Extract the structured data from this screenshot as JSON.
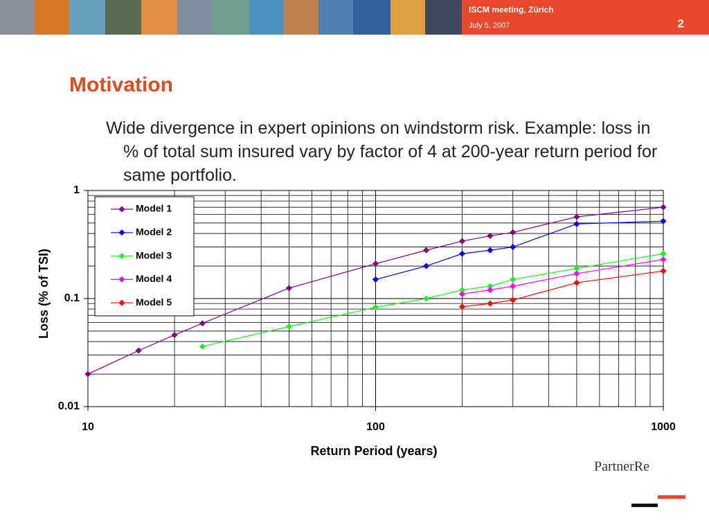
{
  "header": {
    "meeting": "ISCM meeting, Zürich",
    "date": "July 5, 2007",
    "page": "2"
  },
  "title": "Motivation",
  "bullet": "Wide divergence in expert opinions on windstorm risk. Example: loss in % of total sum insured vary by factor of 4 at 200-year return period for same portfolio.",
  "logo": "PartnerRe",
  "chart_data": {
    "type": "line",
    "x_label": "Return Period (years)",
    "y_label": "Loss (% of TSI)",
    "x": [
      10,
      15,
      20,
      25,
      50,
      100,
      150,
      200,
      250,
      300,
      500,
      1000
    ],
    "xlim": [
      10,
      1000
    ],
    "ylim": [
      0.01,
      1
    ],
    "xticks": [
      10,
      100,
      1000
    ],
    "yticks": [
      0.01,
      0.1,
      1
    ],
    "xscale": "log",
    "yscale": "log",
    "grid": true,
    "series": [
      {
        "name": "Model 1",
        "color": "#800080",
        "values": [
          0.02,
          0.033,
          0.046,
          0.059,
          0.125,
          0.21,
          0.28,
          0.34,
          0.38,
          0.41,
          0.57,
          0.7
        ]
      },
      {
        "name": "Model 2",
        "color": "#0000ff",
        "values": [
          null,
          null,
          null,
          null,
          null,
          0.15,
          0.2,
          0.26,
          0.28,
          0.3,
          0.49,
          0.52
        ]
      },
      {
        "name": "Model 3",
        "color": "#22ee22",
        "values": [
          null,
          null,
          null,
          0.036,
          0.055,
          0.083,
          0.1,
          0.12,
          0.13,
          0.15,
          0.19,
          0.26
        ]
      },
      {
        "name": "Model 4",
        "color": "#ff00ff",
        "values": [
          null,
          null,
          null,
          null,
          null,
          null,
          null,
          0.11,
          0.12,
          0.13,
          0.17,
          0.23
        ]
      },
      {
        "name": "Model 5",
        "color": "#ff0000",
        "values": [
          null,
          null,
          null,
          null,
          null,
          null,
          null,
          0.084,
          0.09,
          0.097,
          0.14,
          0.18
        ]
      }
    ]
  }
}
